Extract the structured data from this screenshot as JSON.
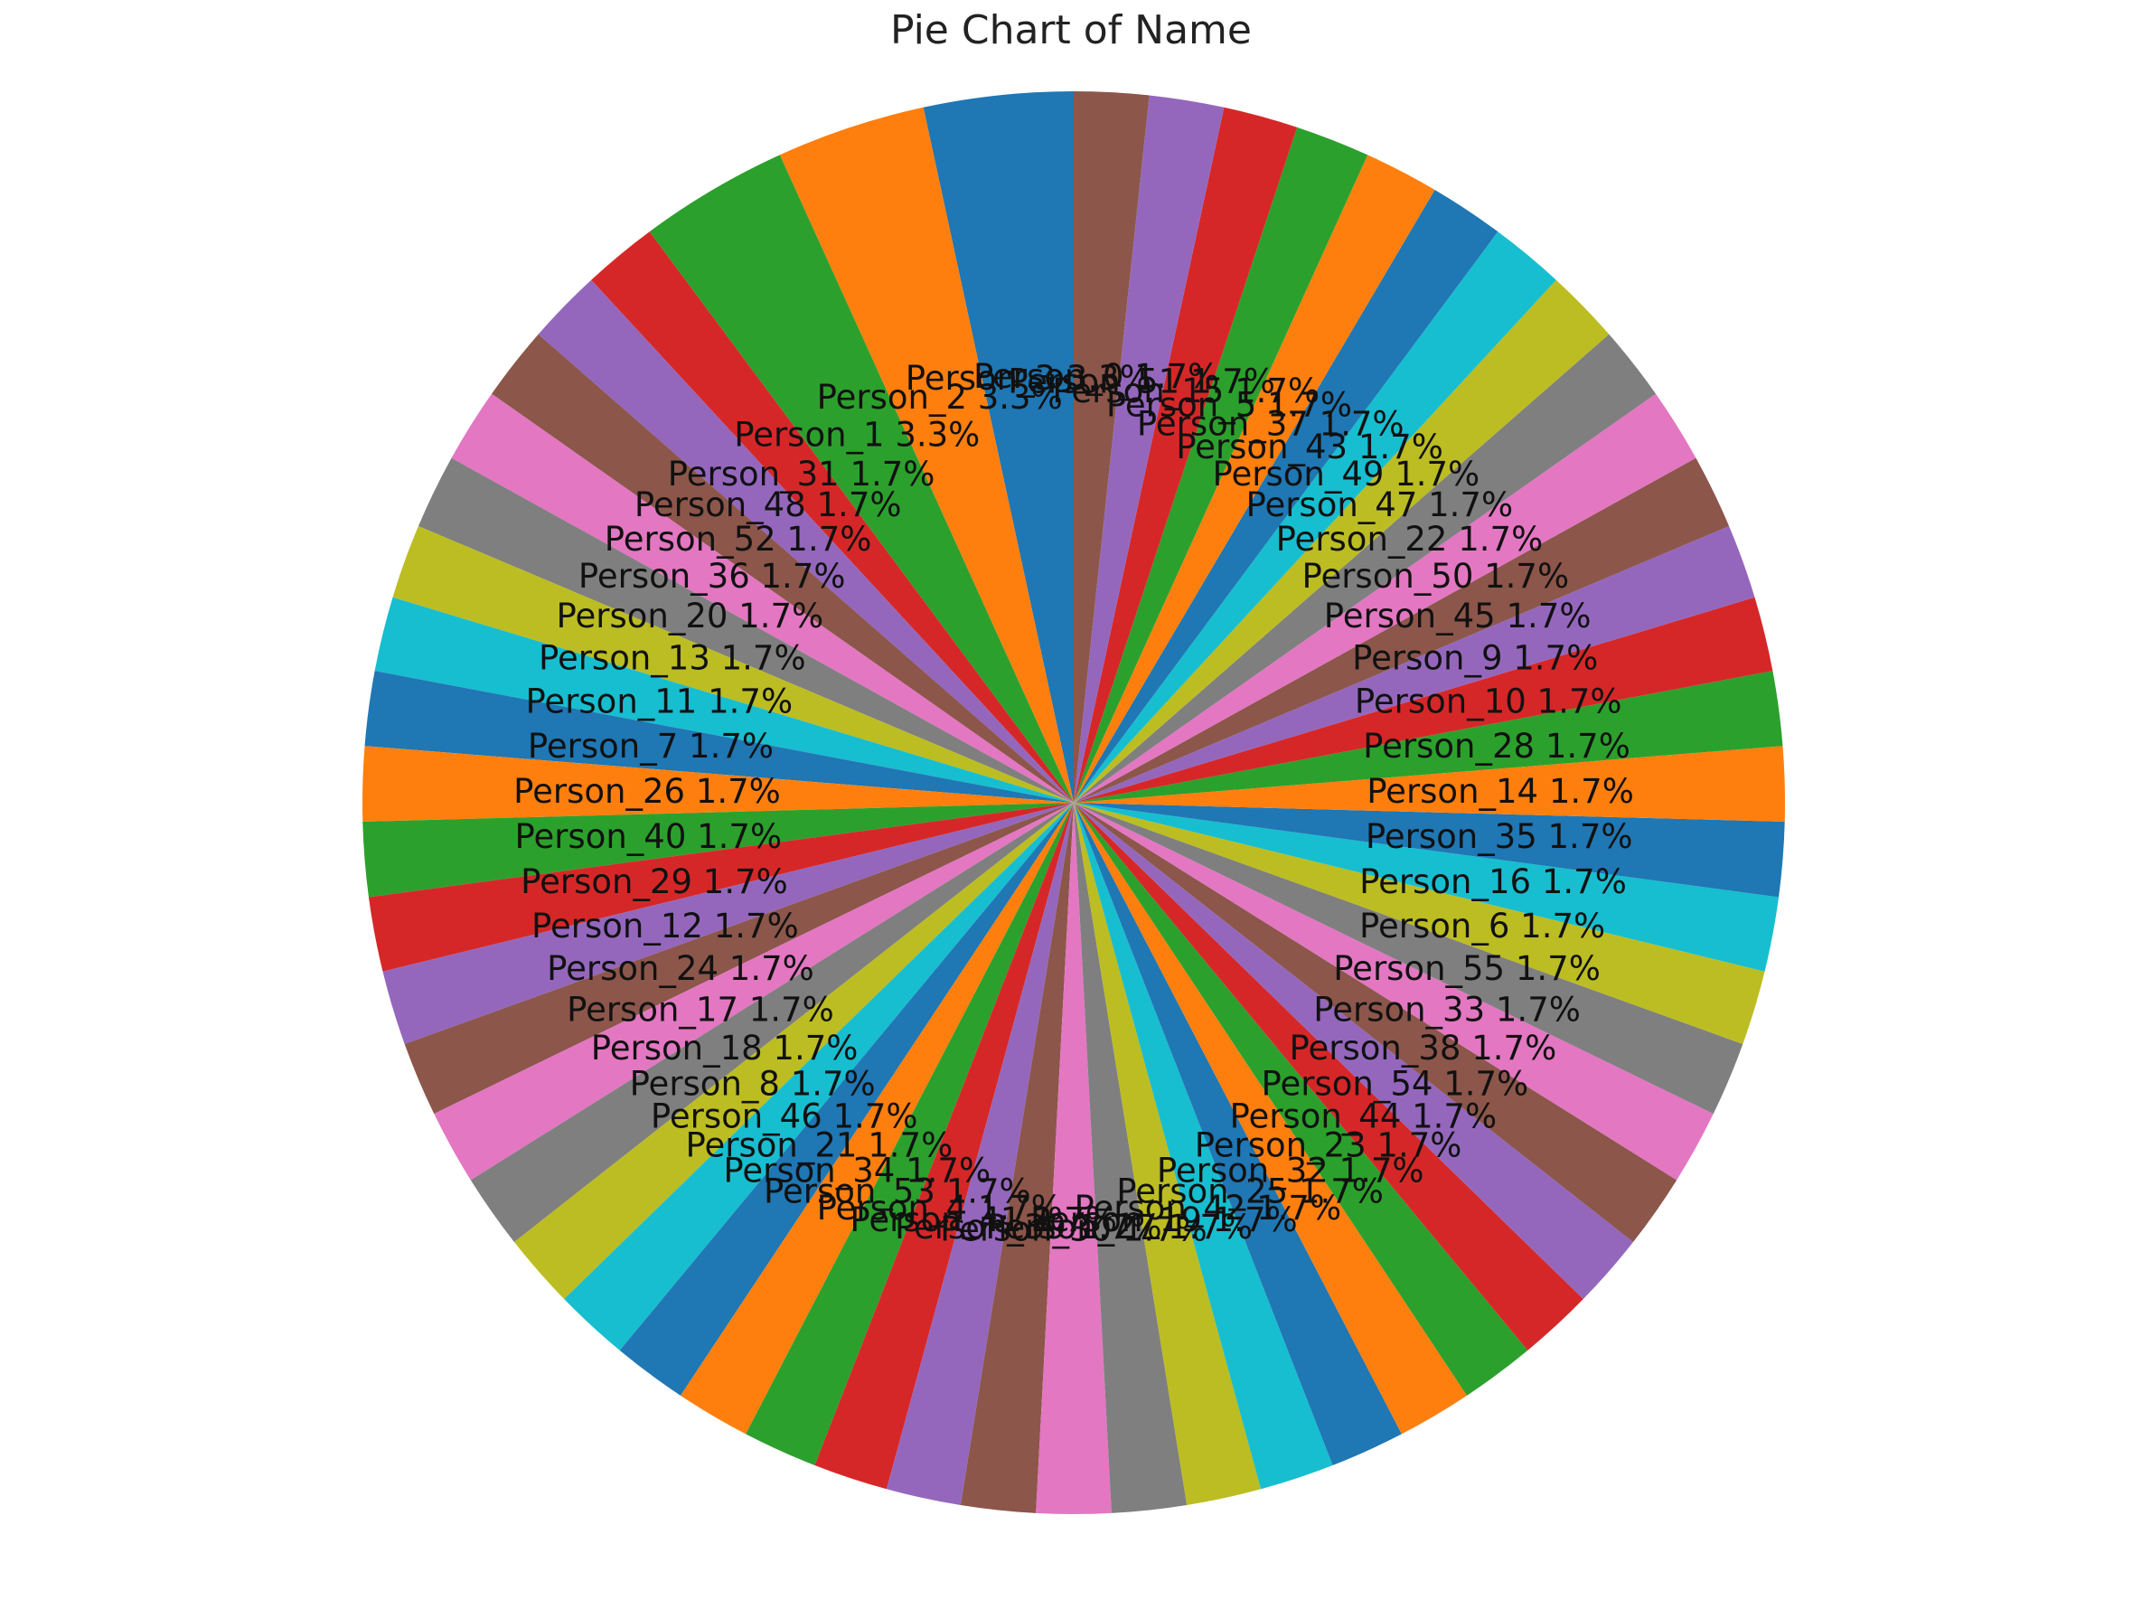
{
  "chart_data": {
    "type": "pie",
    "title": "Pie Chart of Name",
    "start_angle_deg": 90,
    "direction": "counterclockwise",
    "palette": [
      "#1f77b4",
      "#ff7f0e",
      "#2ca02c",
      "#d62728",
      "#9467bd",
      "#8c564b",
      "#e377c2",
      "#7f7f7f",
      "#bcbd22",
      "#17becf"
    ],
    "slices": [
      {
        "label": "Person_3",
        "percent_label": "3.3%",
        "value": 2
      },
      {
        "label": "Person_2",
        "percent_label": "3.3%",
        "value": 2
      },
      {
        "label": "Person_1",
        "percent_label": "3.3%",
        "value": 2
      },
      {
        "label": "Person_31",
        "percent_label": "1.7%",
        "value": 1
      },
      {
        "label": "Person_48",
        "percent_label": "1.7%",
        "value": 1
      },
      {
        "label": "Person_52",
        "percent_label": "1.7%",
        "value": 1
      },
      {
        "label": "Person_36",
        "percent_label": "1.7%",
        "value": 1
      },
      {
        "label": "Person_20",
        "percent_label": "1.7%",
        "value": 1
      },
      {
        "label": "Person_13",
        "percent_label": "1.7%",
        "value": 1
      },
      {
        "label": "Person_11",
        "percent_label": "1.7%",
        "value": 1
      },
      {
        "label": "Person_7",
        "percent_label": "1.7%",
        "value": 1
      },
      {
        "label": "Person_26",
        "percent_label": "1.7%",
        "value": 1
      },
      {
        "label": "Person_40",
        "percent_label": "1.7%",
        "value": 1
      },
      {
        "label": "Person_29",
        "percent_label": "1.7%",
        "value": 1
      },
      {
        "label": "Person_12",
        "percent_label": "1.7%",
        "value": 1
      },
      {
        "label": "Person_24",
        "percent_label": "1.7%",
        "value": 1
      },
      {
        "label": "Person_17",
        "percent_label": "1.7%",
        "value": 1
      },
      {
        "label": "Person_18",
        "percent_label": "1.7%",
        "value": 1
      },
      {
        "label": "Person_8",
        "percent_label": "1.7%",
        "value": 1
      },
      {
        "label": "Person_46",
        "percent_label": "1.7%",
        "value": 1
      },
      {
        "label": "Person_21",
        "percent_label": "1.7%",
        "value": 1
      },
      {
        "label": "Person_34",
        "percent_label": "1.7%",
        "value": 1
      },
      {
        "label": "Person_53",
        "percent_label": "1.7%",
        "value": 1
      },
      {
        "label": "Person_4",
        "percent_label": "1.7%",
        "value": 1
      },
      {
        "label": "Person_41",
        "percent_label": "1.7%",
        "value": 1
      },
      {
        "label": "Person_39",
        "percent_label": "1.7%",
        "value": 1
      },
      {
        "label": "Person_30",
        "percent_label": "1.7%",
        "value": 1
      },
      {
        "label": "Person_27",
        "percent_label": "1.7%",
        "value": 1
      },
      {
        "label": "Person_19",
        "percent_label": "1.7%",
        "value": 1
      },
      {
        "label": "Person_42",
        "percent_label": "1.7%",
        "value": 1
      },
      {
        "label": "Person_25",
        "percent_label": "1.7%",
        "value": 1
      },
      {
        "label": "Person_32",
        "percent_label": "1.7%",
        "value": 1
      },
      {
        "label": "Person_23",
        "percent_label": "1.7%",
        "value": 1
      },
      {
        "label": "Person_44",
        "percent_label": "1.7%",
        "value": 1
      },
      {
        "label": "Person_54",
        "percent_label": "1.7%",
        "value": 1
      },
      {
        "label": "Person_38",
        "percent_label": "1.7%",
        "value": 1
      },
      {
        "label": "Person_33",
        "percent_label": "1.7%",
        "value": 1
      },
      {
        "label": "Person_55",
        "percent_label": "1.7%",
        "value": 1
      },
      {
        "label": "Person_6",
        "percent_label": "1.7%",
        "value": 1
      },
      {
        "label": "Person_16",
        "percent_label": "1.7%",
        "value": 1
      },
      {
        "label": "Person_35",
        "percent_label": "1.7%",
        "value": 1
      },
      {
        "label": "Person_14",
        "percent_label": "1.7%",
        "value": 1
      },
      {
        "label": "Person_28",
        "percent_label": "1.7%",
        "value": 1
      },
      {
        "label": "Person_10",
        "percent_label": "1.7%",
        "value": 1
      },
      {
        "label": "Person_9",
        "percent_label": "1.7%",
        "value": 1
      },
      {
        "label": "Person_45",
        "percent_label": "1.7%",
        "value": 1
      },
      {
        "label": "Person_50",
        "percent_label": "1.7%",
        "value": 1
      },
      {
        "label": "Person_22",
        "percent_label": "1.7%",
        "value": 1
      },
      {
        "label": "Person_47",
        "percent_label": "1.7%",
        "value": 1
      },
      {
        "label": "Person_49",
        "percent_label": "1.7%",
        "value": 1
      },
      {
        "label": "Person_43",
        "percent_label": "1.7%",
        "value": 1
      },
      {
        "label": "Person_37",
        "percent_label": "1.7%",
        "value": 1
      },
      {
        "label": "Person_5",
        "percent_label": "1.7%",
        "value": 1
      },
      {
        "label": "Person_15",
        "percent_label": "1.7%",
        "value": 1
      },
      {
        "label": "Person_51",
        "percent_label": "1.7%",
        "value": 1
      },
      {
        "label": "Person_0",
        "percent_label": "1.7%",
        "value": 1
      }
    ]
  }
}
